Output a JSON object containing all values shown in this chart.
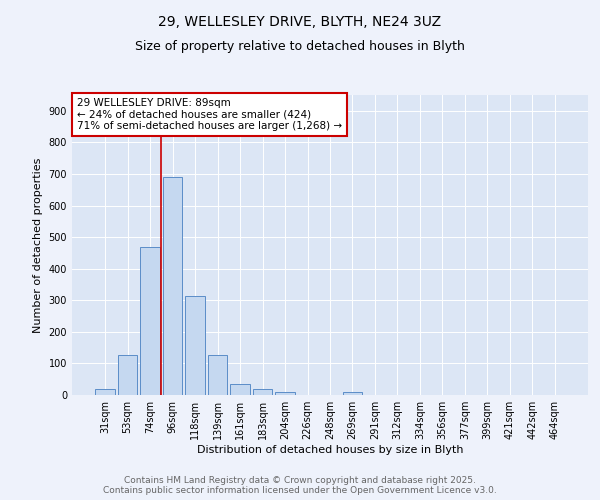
{
  "title_line1": "29, WELLESLEY DRIVE, BLYTH, NE24 3UZ",
  "title_line2": "Size of property relative to detached houses in Blyth",
  "xlabel": "Distribution of detached houses by size in Blyth",
  "ylabel": "Number of detached properties",
  "categories": [
    "31sqm",
    "53sqm",
    "74sqm",
    "96sqm",
    "118sqm",
    "139sqm",
    "161sqm",
    "183sqm",
    "204sqm",
    "226sqm",
    "248sqm",
    "269sqm",
    "291sqm",
    "312sqm",
    "334sqm",
    "356sqm",
    "377sqm",
    "399sqm",
    "421sqm",
    "442sqm",
    "464sqm"
  ],
  "values": [
    18,
    127,
    470,
    690,
    315,
    127,
    35,
    18,
    9,
    0,
    0,
    8,
    0,
    0,
    0,
    0,
    0,
    0,
    0,
    0,
    0
  ],
  "bar_color": "#c5d8f0",
  "bar_edge_color": "#5b8dc8",
  "vline_color": "#cc0000",
  "vline_x_index": 3,
  "annotation_text_line1": "29 WELLESLEY DRIVE: 89sqm",
  "annotation_text_line2": "← 24% of detached houses are smaller (424)",
  "annotation_text_line3": "71% of semi-detached houses are larger (1,268) →",
  "annotation_box_color": "#cc0000",
  "ylim": [
    0,
    950
  ],
  "yticks": [
    0,
    100,
    200,
    300,
    400,
    500,
    600,
    700,
    800,
    900
  ],
  "background_color": "#eef2fb",
  "plot_bg_color": "#dce6f5",
  "footer_text": "Contains HM Land Registry data © Crown copyright and database right 2025.\nContains public sector information licensed under the Open Government Licence v3.0.",
  "title_fontsize": 10,
  "subtitle_fontsize": 9,
  "axis_label_fontsize": 8,
  "tick_fontsize": 7,
  "annotation_fontsize": 7.5,
  "footer_fontsize": 6.5
}
